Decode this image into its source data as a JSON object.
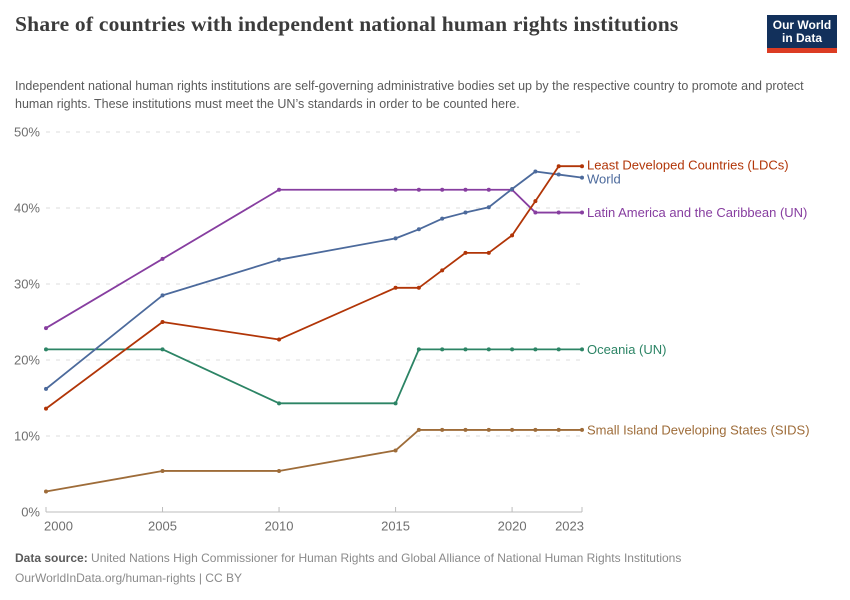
{
  "header": {
    "title": "Share of countries with independent national human rights institutions",
    "subtitle": "Independent national human rights institutions are self-governing administrative bodies set up by the respective country to promote and protect human rights. These institutions must meet the UN’s standards in order to be counted here."
  },
  "logo": {
    "line1": "Our World",
    "line2": "in Data",
    "bg_color": "#12305b",
    "accent_color": "#dc3c23"
  },
  "chart_data": {
    "type": "line",
    "title": "Share of countries with independent national human rights institutions",
    "unit": "%",
    "x": [
      2000,
      2005,
      2010,
      2015,
      2016,
      2017,
      2018,
      2019,
      2020,
      2021,
      2022,
      2023
    ],
    "series": [
      {
        "name": "Least Developed Countries (LDCs)",
        "color": "#B13507",
        "values": [
          13.6,
          25.0,
          22.7,
          29.5,
          29.5,
          31.8,
          34.1,
          34.1,
          36.4,
          40.9,
          45.5,
          45.5
        ]
      },
      {
        "name": "World",
        "color": "#4C6A9C",
        "values": [
          16.2,
          28.5,
          33.2,
          36.0,
          37.2,
          38.6,
          39.4,
          40.1,
          42.5,
          44.8,
          44.4,
          44.0
        ]
      },
      {
        "name": "Latin America and the Caribbean (UN)",
        "color": "#873EA0",
        "values": [
          24.2,
          33.3,
          42.4,
          42.4,
          42.4,
          42.4,
          42.4,
          42.4,
          42.4,
          39.4,
          39.4,
          39.4
        ]
      },
      {
        "name": "Oceania (UN)",
        "color": "#2C8465",
        "values": [
          21.4,
          21.4,
          14.3,
          14.3,
          21.4,
          21.4,
          21.4,
          21.4,
          21.4,
          21.4,
          21.4,
          21.4
        ]
      },
      {
        "name": "Small Island Developing States (SIDS)",
        "color": "#9E6C39",
        "values": [
          2.7,
          5.4,
          5.4,
          8.1,
          10.8,
          10.8,
          10.8,
          10.8,
          10.8,
          10.8,
          10.8,
          10.8
        ]
      }
    ],
    "xticks": [
      2000,
      2005,
      2010,
      2015,
      2020,
      2023
    ],
    "yticks": [
      0,
      10,
      20,
      30,
      40,
      50
    ],
    "ytick_labels": [
      "0%",
      "10%",
      "20%",
      "30%",
      "40%",
      "50%"
    ],
    "xlim": [
      2000,
      2023
    ],
    "ylim": [
      0,
      50
    ],
    "grid": "horizontal-dashed",
    "legend_position": "right-of-line-ends",
    "colors": {
      "grid": "#dedede",
      "axis": "#bcbcbc",
      "tick_text": "#6f6f6f"
    }
  },
  "footer": {
    "source_label": "Data source:",
    "source": "United Nations High Commissioner for Human Rights and Global Alliance of National Human Rights Institutions",
    "note": "OurWorldInData.org/human-rights | CC BY"
  }
}
